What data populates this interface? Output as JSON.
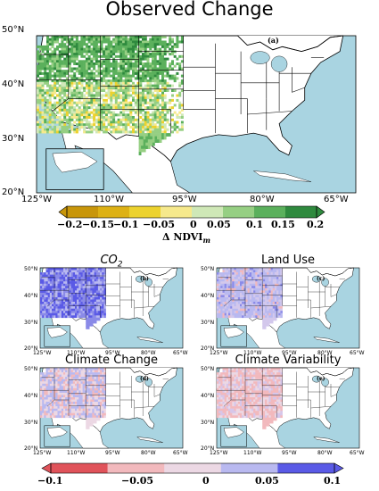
{
  "title": "Observed Change",
  "main_panel": {
    "label": "(a)",
    "lat_ticks": [
      "50°N",
      "40°N",
      "30°N",
      "20°N"
    ],
    "lon_ticks": [
      "125°W",
      "110°W",
      "95°W",
      "80°W",
      "65°W"
    ],
    "colorbar": {
      "ticks": [
        "−0.2",
        "−0.15",
        "−0.1",
        "−0.05",
        "0",
        "0.05",
        "0.1",
        "0.15",
        "0.2"
      ],
      "label": "Δ NDVI",
      "label_sub": "m",
      "colors": [
        "#c8960a",
        "#ddb114",
        "#ecd22e",
        "#f6e98c",
        "#cfe8b7",
        "#96cf83",
        "#5bb05c",
        "#2f8a3e"
      ]
    }
  },
  "small_panels": [
    {
      "title": "CO",
      "title_sub": "2",
      "label": "(b)",
      "style": "co2"
    },
    {
      "title": "Land Use",
      "title_sub": "",
      "label": "(c)",
      "style": "landuse"
    },
    {
      "title": "Climate Change",
      "title_sub": "",
      "label": "(d)",
      "style": "cc"
    },
    {
      "title": "Climate Variability",
      "title_sub": "",
      "label": "(e)",
      "style": "cv"
    }
  ],
  "small_ticks": {
    "lat": [
      "50°N",
      "40°N",
      "30°N",
      "20°N"
    ],
    "lon": [
      "125°W",
      "110°W",
      "95°W",
      "80°W",
      "65°W"
    ]
  },
  "bottom_colorbar": {
    "ticks": [
      "−0.1",
      "−0.05",
      "0",
      "0.05",
      "0.1"
    ],
    "colors": [
      "#e0535a",
      "#f2b9bd",
      "#ecd8e4",
      "#b9b9f0",
      "#5a5ae6"
    ]
  },
  "colors": {
    "ocean": "#a9d4e1",
    "land": "#ffffff",
    "border": "#000000"
  }
}
